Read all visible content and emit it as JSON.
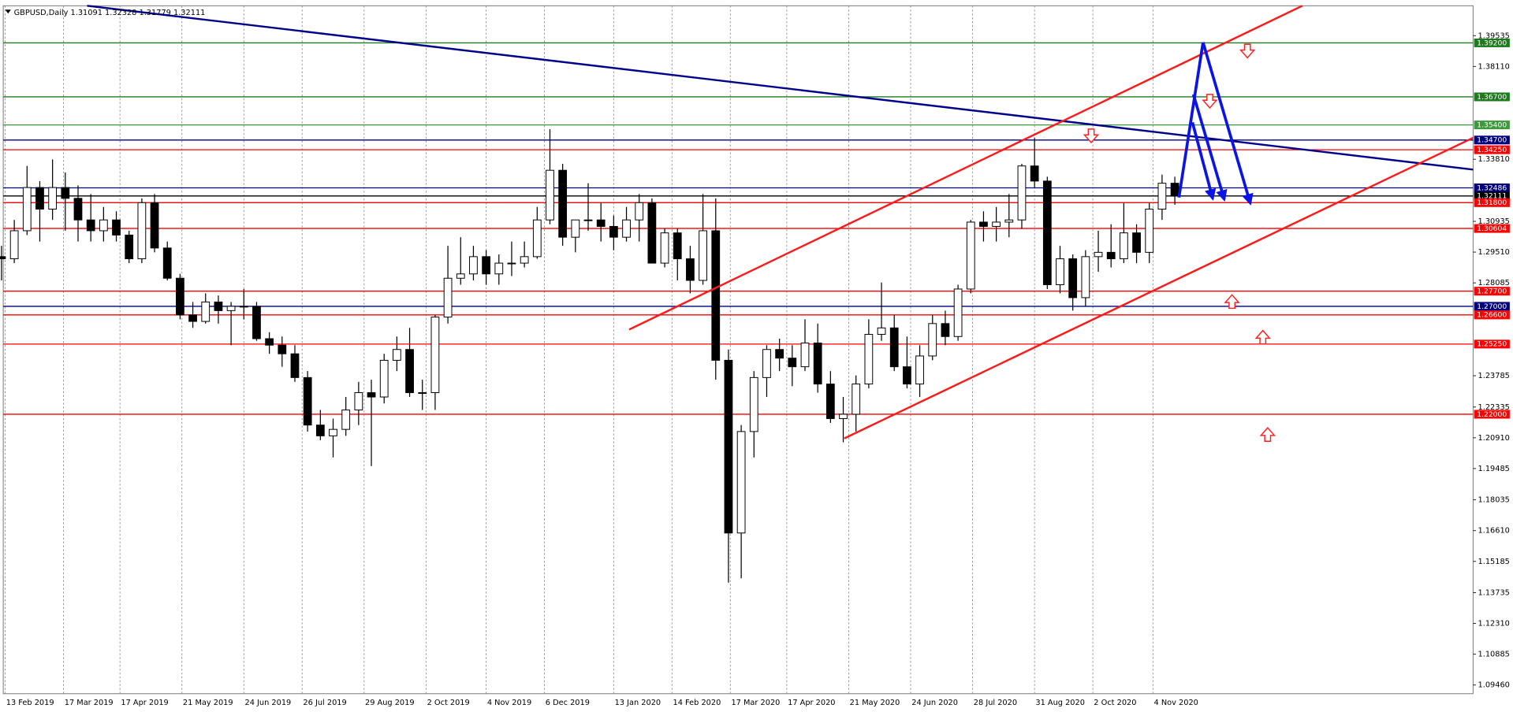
{
  "chart_data": {
    "type": "candlestick",
    "title": "GBPUSD,Daily  1.31091 1.32328 1.31779 1.32111",
    "x": [
      "11 Feb 2019",
      "18 Feb 2019",
      "25 Feb 2019",
      "4 Mar 2019",
      "11 Mar 2019",
      "18 Mar 2019",
      "25 Mar 2019",
      "1 Apr 2019",
      "8 Apr 2019",
      "15 Apr 2019",
      "22 Apr 2019",
      "29 Apr 2019",
      "6 May 2019",
      "13 May 2019",
      "20 May 2019",
      "27 May 2019",
      "3 Jun 2019",
      "10 Jun 2019",
      "17 Jun 2019",
      "24 Jun 2019",
      "1 Jul 2019",
      "8 Jul 2019",
      "15 Jul 2019",
      "22 Jul 2019",
      "29 Jul 2019",
      "5 Aug 2019",
      "12 Aug 2019",
      "19 Aug 2019",
      "26 Aug 2019",
      "2 Sep 2019",
      "9 Sep 2019",
      "16 Sep 2019",
      "23 Sep 2019",
      "30 Sep 2019",
      "7 Oct 2019",
      "14 Oct 2019",
      "21 Oct 2019",
      "28 Oct 2019",
      "4 Nov 2019",
      "11 Nov 2019",
      "18 Nov 2019",
      "25 Nov 2019",
      "2 Dec 2019",
      "9 Dec 2019",
      "16 Dec 2019",
      "23 Dec 2019",
      "30 Dec 2019",
      "6 Jan 2020",
      "13 Jan 2020",
      "20 Jan 2020",
      "27 Jan 2020",
      "3 Feb 2020",
      "10 Feb 2020",
      "17 Feb 2020",
      "24 Feb 2020",
      "2 Mar 2020",
      "9 Mar 2020",
      "16 Mar 2020",
      "23 Mar 2020",
      "30 Mar 2020",
      "6 Apr 2020",
      "13 Apr 2020",
      "20 Apr 2020",
      "27 Apr 2020",
      "4 May 2020",
      "11 May 2020",
      "18 May 2020",
      "25 May 2020",
      "1 Jun 2020",
      "8 Jun 2020",
      "15 Jun 2020",
      "22 Jun 2020",
      "29 Jun 2020",
      "6 Jul 2020",
      "13 Jul 2020",
      "20 Jul 2020",
      "27 Jul 2020",
      "3 Aug 2020",
      "10 Aug 2020",
      "17 Aug 2020",
      "24 Aug 2020",
      "31 Aug 2020",
      "7 Sep 2020",
      "14 Sep 2020",
      "21 Sep 2020",
      "28 Sep 2020",
      "5 Oct 2020",
      "12 Oct 2020",
      "19 Oct 2020",
      "26 Oct 2020",
      "2 Nov 2020",
      "9 Nov 2020",
      "16 Nov 2020"
    ],
    "open": [
      1.293,
      1.292,
      1.305,
      1.325,
      1.315,
      1.325,
      1.32,
      1.31,
      1.305,
      1.31,
      1.303,
      1.292,
      1.318,
      1.297,
      1.283,
      1.266,
      1.263,
      1.272,
      1.268,
      1.27,
      1.27,
      1.255,
      1.252,
      1.248,
      1.237,
      1.215,
      1.21,
      1.213,
      1.222,
      1.23,
      1.228,
      1.245,
      1.25,
      1.23,
      1.23,
      1.265,
      1.283,
      1.285,
      1.293,
      1.285,
      1.29,
      1.29,
      1.293,
      1.31,
      1.333,
      1.302,
      1.31,
      1.31,
      1.307,
      1.302,
      1.31,
      1.318,
      1.29,
      1.304,
      1.292,
      1.282,
      1.305,
      1.245,
      1.165,
      1.212,
      1.237,
      1.25,
      1.246,
      1.242,
      1.253,
      1.234,
      1.218,
      1.22,
      1.234,
      1.257,
      1.26,
      1.242,
      1.234,
      1.247,
      1.262,
      1.256,
      1.278,
      1.309,
      1.307,
      1.309,
      1.31,
      1.335,
      1.328,
      1.28,
      1.292,
      1.274,
      1.293,
      1.295,
      1.292,
      1.304,
      1.295,
      1.315,
      1.327
    ],
    "high": [
      1.298,
      1.31,
      1.335,
      1.328,
      1.338,
      1.332,
      1.326,
      1.322,
      1.316,
      1.314,
      1.305,
      1.32,
      1.322,
      1.3,
      1.285,
      1.272,
      1.276,
      1.275,
      1.272,
      1.278,
      1.272,
      1.258,
      1.256,
      1.252,
      1.24,
      1.222,
      1.218,
      1.228,
      1.235,
      1.236,
      1.248,
      1.256,
      1.26,
      1.236,
      1.266,
      1.298,
      1.302,
      1.298,
      1.296,
      1.294,
      1.3,
      1.3,
      1.316,
      1.352,
      1.336,
      1.31,
      1.327,
      1.318,
      1.312,
      1.316,
      1.322,
      1.32,
      1.306,
      1.306,
      1.298,
      1.322,
      1.32,
      1.25,
      1.215,
      1.24,
      1.252,
      1.255,
      1.252,
      1.264,
      1.262,
      1.24,
      1.228,
      1.238,
      1.264,
      1.281,
      1.266,
      1.256,
      1.252,
      1.266,
      1.268,
      1.28,
      1.31,
      1.314,
      1.316,
      1.322,
      1.336,
      1.348,
      1.33,
      1.298,
      1.294,
      1.296,
      1.305,
      1.308,
      1.318,
      1.308,
      1.318,
      1.331,
      1.33
    ],
    "low": [
      1.282,
      1.29,
      1.303,
      1.3,
      1.31,
      1.305,
      1.3,
      1.3,
      1.3,
      1.3,
      1.29,
      1.29,
      1.295,
      1.282,
      1.264,
      1.26,
      1.262,
      1.262,
      1.252,
      1.264,
      1.254,
      1.248,
      1.242,
      1.235,
      1.212,
      1.208,
      1.2,
      1.21,
      1.215,
      1.196,
      1.225,
      1.24,
      1.228,
      1.222,
      1.222,
      1.262,
      1.28,
      1.282,
      1.28,
      1.28,
      1.284,
      1.288,
      1.292,
      1.308,
      1.298,
      1.295,
      1.305,
      1.3,
      1.296,
      1.3,
      1.3,
      1.29,
      1.288,
      1.282,
      1.276,
      1.28,
      1.236,
      1.142,
      1.144,
      1.2,
      1.228,
      1.24,
      1.233,
      1.24,
      1.23,
      1.216,
      1.207,
      1.212,
      1.232,
      1.254,
      1.24,
      1.232,
      1.228,
      1.245,
      1.252,
      1.254,
      1.276,
      1.3,
      1.3,
      1.302,
      1.306,
      1.325,
      1.278,
      1.276,
      1.268,
      1.27,
      1.286,
      1.288,
      1.29,
      1.29,
      1.29,
      1.31,
      1.317
    ],
    "close": [
      1.292,
      1.305,
      1.325,
      1.315,
      1.325,
      1.32,
      1.31,
      1.305,
      1.31,
      1.303,
      1.292,
      1.318,
      1.297,
      1.283,
      1.266,
      1.263,
      1.272,
      1.268,
      1.27,
      1.27,
      1.255,
      1.252,
      1.248,
      1.237,
      1.215,
      1.21,
      1.213,
      1.222,
      1.23,
      1.228,
      1.245,
      1.25,
      1.23,
      1.23,
      1.265,
      1.283,
      1.285,
      1.293,
      1.285,
      1.29,
      1.29,
      1.293,
      1.31,
      1.333,
      1.302,
      1.31,
      1.31,
      1.307,
      1.302,
      1.31,
      1.318,
      1.29,
      1.304,
      1.292,
      1.282,
      1.305,
      1.245,
      1.165,
      1.212,
      1.237,
      1.25,
      1.246,
      1.242,
      1.253,
      1.234,
      1.218,
      1.22,
      1.234,
      1.257,
      1.26,
      1.242,
      1.234,
      1.247,
      1.262,
      1.256,
      1.278,
      1.309,
      1.307,
      1.309,
      1.31,
      1.335,
      1.328,
      1.28,
      1.292,
      1.274,
      1.293,
      1.295,
      1.292,
      1.304,
      1.295,
      1.315,
      1.327,
      1.321
    ],
    "ylim": [
      1.09058,
      1.40918
    ],
    "yticks": [
      1.39535,
      {
        "value": 1.3811,
        "label": "1.38110"
      },
      {
        "value": 1.3381,
        "label": "1.33810"
      },
      1.30935,
      {
        "value": 1.2951,
        "label": "1.29510"
      },
      1.28085,
      1.23785,
      1.22335,
      {
        "value": 1.2091,
        "label": "1.20910"
      },
      1.19485,
      1.18035,
      {
        "value": 1.1661,
        "label": "1.16610"
      },
      1.15185,
      1.13735,
      {
        "value": 1.1231,
        "label": "1.12310"
      },
      1.10885,
      {
        "value": 1.0946,
        "label": "1.09460"
      }
    ],
    "xticks": [
      "13 Feb 2019",
      "17 Mar 2019",
      "17 Apr 2019",
      "21 May 2019",
      "24 Jun 2019",
      "26 Jul 2019",
      "29 Aug 2019",
      "2 Oct 2019",
      "4 Nov 2019",
      "6 Dec 2019",
      "13 Jan 2020",
      "14 Feb 2020",
      "17 Mar 2020",
      "17 Apr 2020",
      "21 May 2020",
      "24 Jun 2020",
      "28 Jul 2020",
      "31 Aug 2020",
      "2 Oct 2020",
      "4 Nov 2020"
    ],
    "levels": [
      {
        "value": 1.392,
        "label": "1.39200",
        "color": "#1d7a1d"
      },
      {
        "value": 1.367,
        "label": "1.36700",
        "color": "#1d7a1d"
      },
      {
        "value": 1.354,
        "label": "1.35400",
        "color": "#3c9a3c"
      },
      {
        "value": 1.347,
        "label": "1.34700",
        "color": "#000080"
      },
      {
        "value": 1.3425,
        "label": "1.34250",
        "color": "#ff0000"
      },
      {
        "value": 1.32486,
        "label": "1.32486",
        "color": "#000080"
      },
      {
        "value": 1.32111,
        "label": "1.32111",
        "color": "#000000"
      },
      {
        "value": 1.318,
        "label": "1.31800",
        "color": "#ff0000"
      },
      {
        "value": 1.30604,
        "label": "1.30604",
        "color": "#ff0000"
      },
      {
        "value": 1.277,
        "label": "1.27700",
        "color": "#ff0000"
      },
      {
        "value": 1.27,
        "label": "1.27000",
        "color": "#000080"
      },
      {
        "value": 1.266,
        "label": "1.26600",
        "color": "#ff0000"
      },
      {
        "value": 1.2525,
        "label": "1.25250",
        "color": "#ff0000"
      },
      {
        "value": 1.22,
        "label": "1.22000",
        "color": "#ff0000"
      }
    ]
  }
}
